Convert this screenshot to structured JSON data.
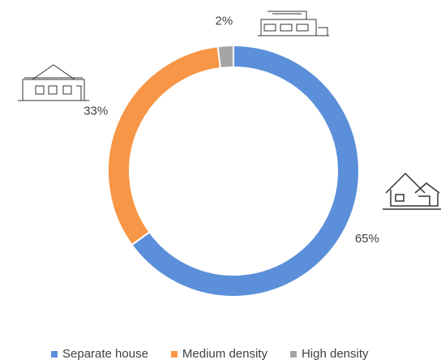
{
  "chart_data": {
    "type": "donut",
    "series": [
      {
        "name": "Separate house",
        "color": "#5b8fd9",
        "values": [
          65
        ],
        "value_labels": [
          "65%"
        ]
      },
      {
        "name": "Medium density",
        "color": "#f79646",
        "values": [
          33
        ],
        "value_labels": [
          "33%"
        ]
      },
      {
        "name": "High density",
        "color": "#a5a5a5",
        "values": [
          2
        ],
        "value_labels": [
          "2%"
        ]
      }
    ],
    "legend": "bottom"
  }
}
